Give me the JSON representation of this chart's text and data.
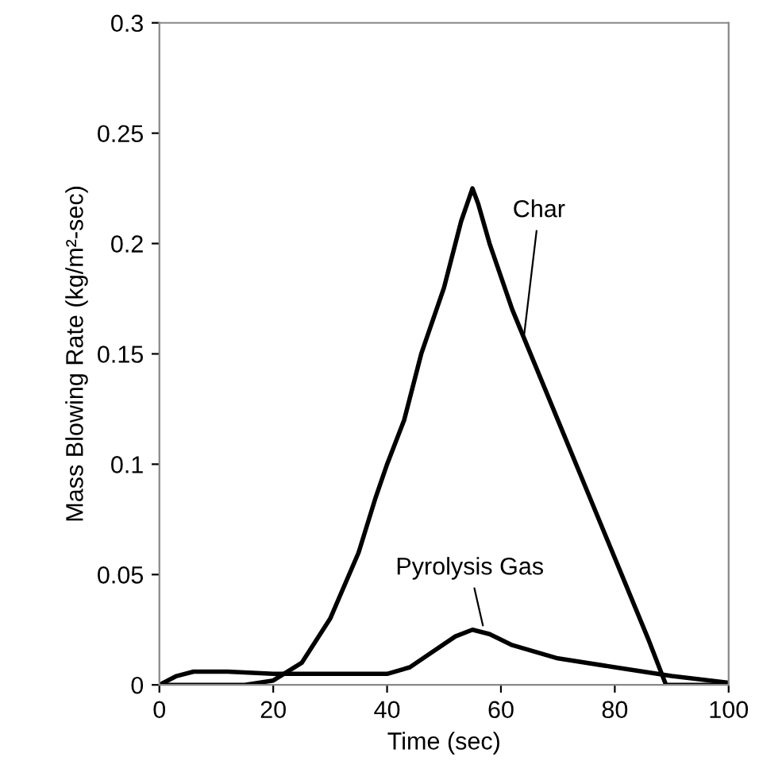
{
  "chart_data": {
    "type": "line",
    "xlabel": "Time (sec)",
    "ylabel": "Mass Blowing Rate (kg/m²-sec)",
    "xlim": [
      0,
      100
    ],
    "xticks": [
      0,
      20,
      40,
      60,
      80,
      100
    ],
    "ylim": [
      0,
      0.3
    ],
    "yticks": [
      0,
      0.05,
      0.1,
      0.15,
      0.2,
      0.25,
      0.3
    ],
    "grid": false,
    "legend": false,
    "line_style": "solid",
    "marker": "none",
    "series": [
      {
        "color": "#000000",
        "x": [
          0,
          15,
          20,
          25,
          30,
          35,
          38,
          40,
          43,
          46,
          50,
          53,
          55,
          56,
          58,
          62,
          66,
          70,
          74,
          78,
          82,
          86,
          89,
          100
        ],
        "values": [
          0,
          0,
          0.002,
          0.01,
          0.03,
          0.06,
          0.085,
          0.1,
          0.12,
          0.15,
          0.18,
          0.21,
          0.225,
          0.218,
          0.2,
          0.17,
          0.145,
          0.12,
          0.095,
          0.07,
          0.045,
          0.02,
          0,
          0
        ]
      },
      {
        "color": "#000000",
        "x": [
          0,
          3,
          6,
          12,
          20,
          30,
          40,
          44,
          48,
          52,
          55,
          58,
          62,
          70,
          80,
          90,
          100
        ],
        "values": [
          0,
          0.004,
          0.006,
          0.006,
          0.005,
          0.005,
          0.005,
          0.008,
          0.015,
          0.022,
          0.025,
          0.023,
          0.018,
          0.012,
          0.008,
          0.004,
          0.001
        ]
      }
    ],
    "annotations": [
      {
        "text": "Char",
        "x": 64,
        "y": 0.157
      },
      {
        "text": "Pyrolysis Gas",
        "x": 57,
        "y": 0.025
      }
    ]
  }
}
